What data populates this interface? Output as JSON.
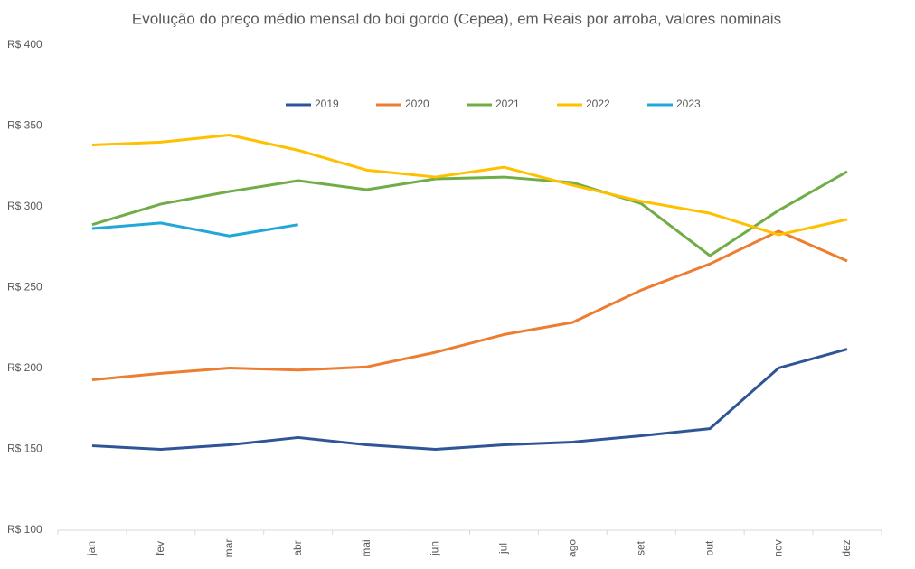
{
  "chart_data": {
    "type": "line",
    "title": "Evolução do preço médio mensal do boi gordo (Cepea), em Reais por arroba, valores nominais",
    "categories": [
      "jan",
      "fev",
      "mar",
      "abr",
      "mai",
      "jun",
      "jul",
      "ago",
      "set",
      "out",
      "nov",
      "dez"
    ],
    "series": [
      {
        "name": "2019",
        "color": "#2f5597",
        "values": [
          152.2,
          150,
          152.8,
          157.3,
          152.8,
          150,
          152.8,
          154.5,
          158.4,
          162.8,
          200.3,
          212
        ]
      },
      {
        "name": "2020",
        "color": "#ed7d31",
        "values": [
          193,
          197,
          200.3,
          199,
          201,
          210,
          221,
          228.5,
          248.5,
          264.7,
          285,
          266.5
        ]
      },
      {
        "name": "2021",
        "color": "#70ad47",
        "values": [
          289,
          301.7,
          309.5,
          316.2,
          310.6,
          317.3,
          318.4,
          315,
          302,
          269.8,
          297.8,
          321.8
        ]
      },
      {
        "name": "2022",
        "color": "#ffc000",
        "values": [
          338.3,
          340,
          344.4,
          335,
          322.7,
          318.4,
          324.5,
          313.4,
          303.4,
          296,
          282.7,
          292.2
        ]
      },
      {
        "name": "2023",
        "color": "#22a7d9",
        "values": [
          286.6,
          290,
          282,
          289,
          null,
          null,
          null,
          null,
          null,
          null,
          null,
          null
        ]
      }
    ],
    "ylim": [
      100,
      400
    ],
    "yticks": [
      {
        "value": 100,
        "label": "R$ 100"
      },
      {
        "value": 150,
        "label": "R$ 150"
      },
      {
        "value": 200,
        "label": "R$ 200"
      },
      {
        "value": 250,
        "label": "R$ 250"
      },
      {
        "value": 300,
        "label": "R$ 300"
      },
      {
        "value": 350,
        "label": "R$ 350"
      },
      {
        "value": 400,
        "label": "R$ 400"
      }
    ],
    "legend": "top"
  }
}
